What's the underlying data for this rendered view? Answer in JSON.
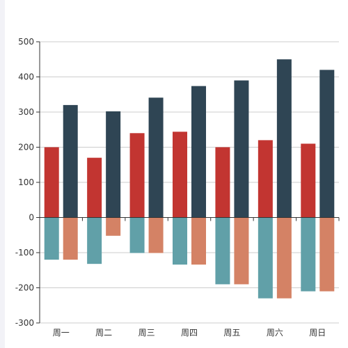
{
  "chart_data": {
    "type": "bar",
    "title": "",
    "xlabel": "",
    "ylabel": "",
    "categories": [
      "周一",
      "周二",
      "周三",
      "周四",
      "周五",
      "周六",
      "周日"
    ],
    "ylim": [
      -300,
      500
    ],
    "yticks": [
      -300,
      -200,
      -100,
      0,
      100,
      200,
      300,
      400,
      500
    ],
    "grid": true,
    "legend": "none",
    "stacked_groups": [
      {
        "series": [
          {
            "values": [
              200,
              170,
              240,
              244,
              200,
              220,
              210
            ],
            "color": "#c23531"
          },
          {
            "values": [
              -120,
              -132,
              -101,
              -134,
              -190,
              -230,
              -210
            ],
            "color": "#61a0a8"
          }
        ]
      },
      {
        "series": [
          {
            "values": [
              320,
              302,
              341,
              374,
              390,
              450,
              420
            ],
            "color": "#2f4554"
          },
          {
            "values": [
              -120,
              -52,
              -101,
              -134,
              -190,
              -230,
              -210
            ],
            "color": "#d48265"
          }
        ]
      }
    ]
  }
}
